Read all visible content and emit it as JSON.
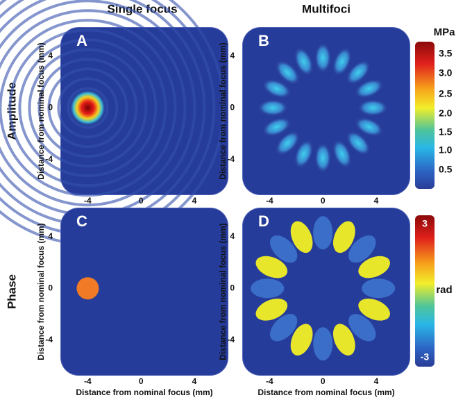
{
  "columns": [
    "Single focus",
    "Multifoci"
  ],
  "rows": [
    "Amplitude",
    "Phase"
  ],
  "panels": [
    {
      "letter": "A",
      "xticks": [
        "-4",
        "0",
        "4"
      ],
      "yticks": [
        "4",
        "0",
        "-4"
      ],
      "ylabel": "Distance from nominal focus (mm)"
    },
    {
      "letter": "B",
      "xticks": [
        "-4",
        "0",
        "4"
      ],
      "yticks": [
        "4",
        "0",
        "-4"
      ],
      "ylabel": "Distance from nominal focus (mm)"
    },
    {
      "letter": "C",
      "xticks": [
        "-4",
        "0",
        "4"
      ],
      "yticks": [
        "4",
        "0",
        "-4"
      ],
      "ylabel": "Distance from nominal focus (mm)",
      "xlabel": "Distance from nominal focus (mm)"
    },
    {
      "letter": "D",
      "xticks": [
        "-4",
        "0",
        "4"
      ],
      "yticks": [
        "4",
        "0",
        "-4"
      ],
      "ylabel": "Distance from nominal focus (mm)",
      "xlabel": "Distance from nominal focus (mm)"
    }
  ],
  "colorbars": [
    {
      "unit": "MPa",
      "ticks": [
        "3.5",
        "3.0",
        "2.5",
        "2.0",
        "1.5",
        "1.0",
        "0.5"
      ]
    },
    {
      "unit": "rad",
      "ticks": [
        "3",
        "-3"
      ]
    }
  ]
}
